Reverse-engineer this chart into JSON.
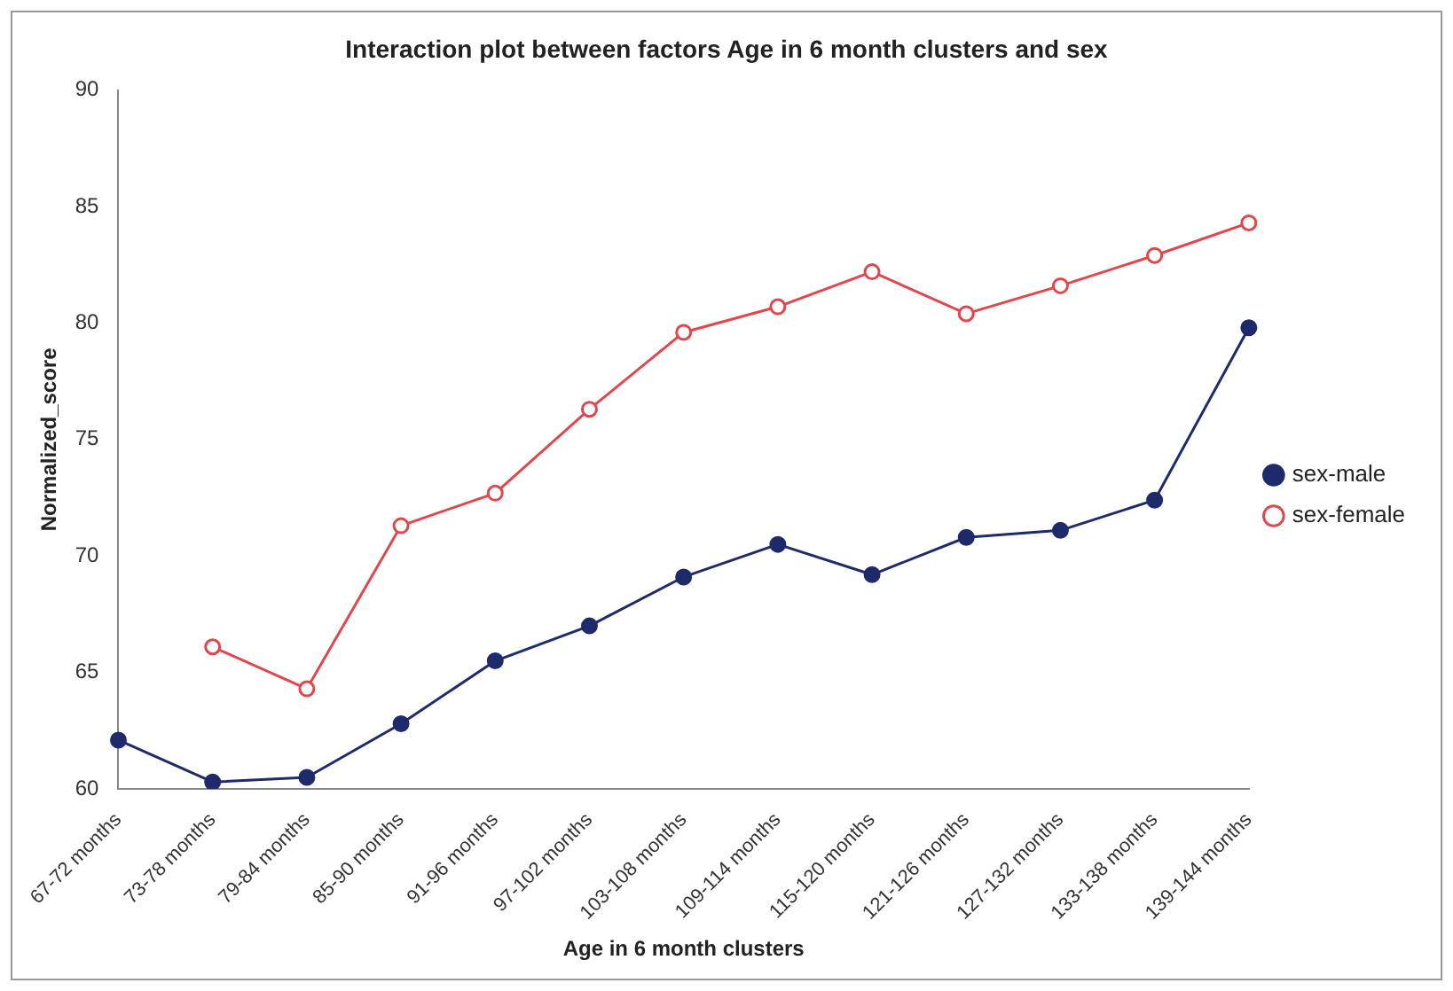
{
  "chart_data": {
    "type": "line",
    "title": "Interaction plot between factors Age in 6 month clusters and sex",
    "xlabel": "Age in 6 month clusters",
    "ylabel": "Normalized_score",
    "categories": [
      "67-72 months",
      "73-78 months",
      "79-84 months",
      "85-90 months",
      "91-96 months",
      "97-102 months",
      "103-108 months",
      "109-114 months",
      "115-120 months",
      "121-126 months",
      "127-132 months",
      "133-138 months",
      "139-144 months"
    ],
    "series": [
      {
        "name": "sex-male",
        "color": "#1f2a6b",
        "values": [
          62.1,
          60.3,
          60.5,
          62.8,
          65.5,
          67.0,
          69.1,
          70.5,
          69.2,
          70.8,
          71.1,
          72.4,
          79.8
        ]
      },
      {
        "name": "sex-female",
        "color": "#e0474c",
        "values": [
          null,
          66.1,
          64.3,
          71.3,
          72.7,
          76.3,
          79.6,
          80.7,
          82.2,
          80.4,
          81.6,
          82.9,
          84.3
        ]
      }
    ],
    "ylim": [
      60,
      90
    ],
    "yticks": [
      60,
      65,
      70,
      75,
      80,
      85,
      90
    ],
    "grid": false,
    "legend": "right",
    "marker": "circle",
    "line_style": "solid"
  }
}
